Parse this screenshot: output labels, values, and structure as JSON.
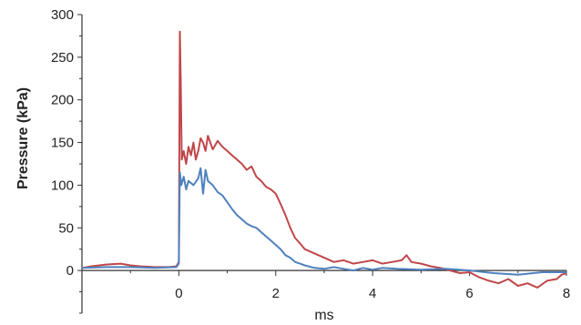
{
  "chart_data": {
    "type": "line",
    "xlabel": "ms",
    "ylabel": "Pressure (kPa)",
    "xlim": [
      -2,
      8
    ],
    "ylim": [
      -50,
      300
    ],
    "xticks": [
      0,
      2,
      4,
      6,
      8
    ],
    "yticks": [
      0,
      50,
      100,
      150,
      200,
      250,
      300
    ],
    "xtick_labels": [
      "0",
      "2",
      "4",
      "6",
      "8"
    ],
    "ytick_labels": [
      "0",
      "50",
      "100",
      "150",
      "200",
      "250",
      "300"
    ],
    "grid": false,
    "series": [
      {
        "color": "#c0474a",
        "x": [
          -2,
          -1.8,
          -1.5,
          -1.2,
          -1.0,
          -0.8,
          -0.5,
          -0.2,
          -0.05,
          0.0,
          0.02,
          0.04,
          0.06,
          0.1,
          0.15,
          0.2,
          0.25,
          0.3,
          0.35,
          0.4,
          0.45,
          0.5,
          0.55,
          0.6,
          0.7,
          0.8,
          0.9,
          1.0,
          1.1,
          1.2,
          1.3,
          1.4,
          1.5,
          1.6,
          1.7,
          1.8,
          1.9,
          2.0,
          2.1,
          2.2,
          2.3,
          2.4,
          2.5,
          2.6,
          2.8,
          3.0,
          3.2,
          3.4,
          3.6,
          3.8,
          4.0,
          4.2,
          4.4,
          4.6,
          4.7,
          4.8,
          5.0,
          5.2,
          5.4,
          5.6,
          5.8,
          6.0,
          6.2,
          6.4,
          6.6,
          6.8,
          7.0,
          7.2,
          7.4,
          7.6,
          7.8,
          7.9,
          8.0
        ],
        "y": [
          3,
          5,
          7,
          8,
          6,
          5,
          4,
          4,
          5,
          10,
          280,
          220,
          130,
          140,
          125,
          145,
          135,
          150,
          130,
          140,
          155,
          150,
          140,
          158,
          142,
          152,
          145,
          140,
          135,
          130,
          125,
          118,
          122,
          110,
          105,
          98,
          95,
          90,
          78,
          65,
          50,
          38,
          32,
          25,
          20,
          15,
          10,
          12,
          8,
          10,
          12,
          8,
          10,
          12,
          18,
          10,
          8,
          5,
          3,
          0,
          -3,
          -2,
          -8,
          -12,
          -15,
          -10,
          -18,
          -15,
          -20,
          -12,
          -10,
          -5,
          -3
        ]
      },
      {
        "color": "#4f81bd",
        "x": [
          -2,
          -1.5,
          -1.0,
          -0.5,
          -0.05,
          0.0,
          0.02,
          0.05,
          0.1,
          0.15,
          0.2,
          0.3,
          0.4,
          0.45,
          0.5,
          0.55,
          0.6,
          0.7,
          0.8,
          0.9,
          1.0,
          1.1,
          1.2,
          1.3,
          1.4,
          1.5,
          1.6,
          1.7,
          1.8,
          1.9,
          2.0,
          2.1,
          2.2,
          2.3,
          2.4,
          2.5,
          2.6,
          2.8,
          3.0,
          3.2,
          3.4,
          3.6,
          3.8,
          4.0,
          4.2,
          4.5,
          5.0,
          5.5,
          6.0,
          6.5,
          7.0,
          7.5,
          8.0
        ],
        "y": [
          3,
          4,
          4,
          3,
          4,
          8,
          115,
          100,
          110,
          95,
          105,
          100,
          108,
          120,
          90,
          118,
          105,
          100,
          92,
          88,
          80,
          72,
          65,
          60,
          55,
          52,
          50,
          45,
          40,
          35,
          30,
          25,
          18,
          15,
          10,
          8,
          6,
          3,
          2,
          4,
          2,
          0,
          3,
          1,
          3,
          2,
          1,
          2,
          0,
          -3,
          -5,
          -2,
          -2
        ]
      }
    ]
  }
}
